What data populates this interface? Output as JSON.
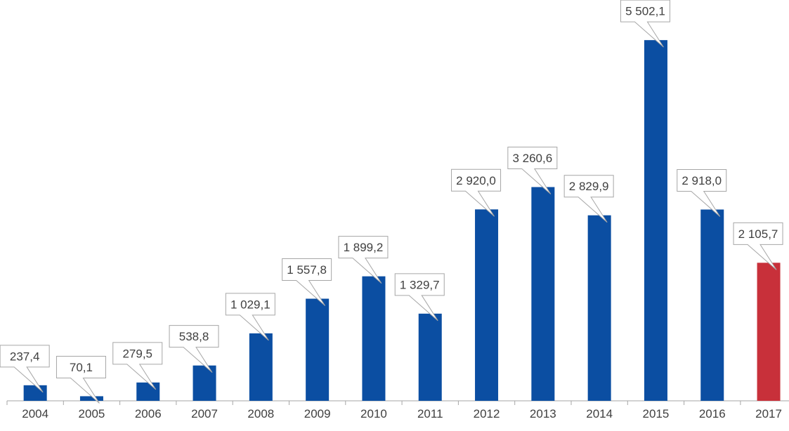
{
  "chart_data": {
    "type": "bar",
    "title": "",
    "xlabel": "",
    "ylabel": "",
    "categories": [
      "2004",
      "2005",
      "2006",
      "2007",
      "2008",
      "2009",
      "2010",
      "2011",
      "2012",
      "2013",
      "2014",
      "2015",
      "2016",
      "2017"
    ],
    "values": [
      237.4,
      70.1,
      279.5,
      538.8,
      1029.1,
      1557.8,
      1899.2,
      1329.7,
      2920.0,
      3260.6,
      2829.9,
      5502.1,
      2918.0,
      2105.7
    ],
    "value_labels": [
      "237,4",
      "70,1",
      "279,5",
      "538,8",
      "1 029,1",
      "1 557,8",
      "1 899,2",
      "1 329,7",
      "2 920,0",
      "3 260,6",
      "2 829,9",
      "5 502,1",
      "2 918,0",
      "2 105,7"
    ],
    "ylim": [
      0,
      5800
    ],
    "grid": false,
    "legend": "none",
    "colors": {
      "bar": "#0b4ea2",
      "highlight_bar": "#c8303a",
      "label_border": "#a6a6a6",
      "label_text": "#404040",
      "axis": "#a6a6a6"
    },
    "highlight_index": 13
  }
}
